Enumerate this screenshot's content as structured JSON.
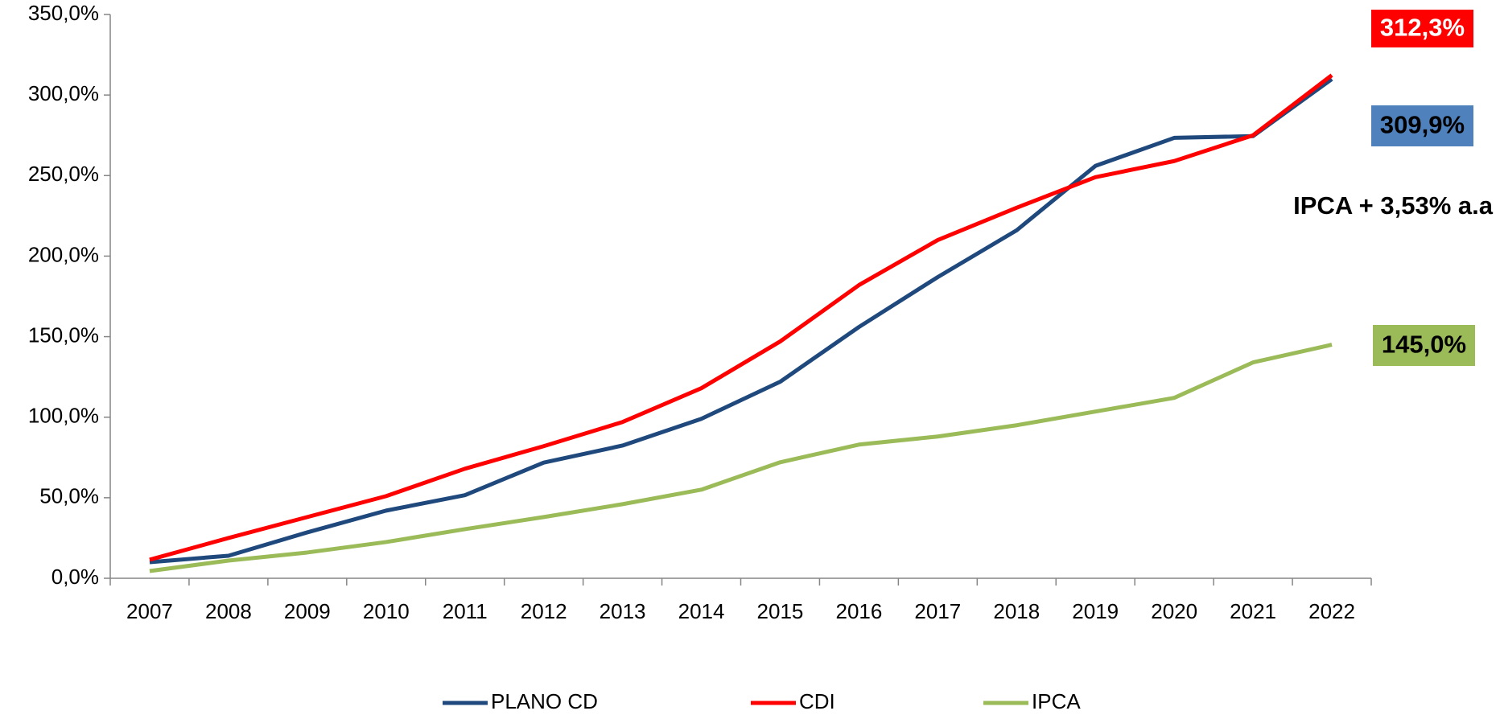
{
  "chart_data": {
    "type": "line",
    "categories": [
      "2007",
      "2008",
      "2009",
      "2010",
      "2011",
      "2012",
      "2013",
      "2014",
      "2015",
      "2016",
      "2017",
      "2018",
      "2019",
      "2020",
      "2021",
      "2022"
    ],
    "series": [
      {
        "name": "PLANO CD",
        "color": "#1f497d",
        "values": [
          10,
          14,
          28.5,
          42,
          51.6,
          71.8,
          82.4,
          99,
          122,
          156,
          187,
          216,
          256,
          273.4,
          274.5,
          309.9
        ]
      },
      {
        "name": "CDI",
        "color": "#ff0000",
        "values": [
          11.5,
          25,
          38,
          51,
          68,
          82,
          97,
          118,
          147,
          182,
          210,
          230,
          249,
          259,
          275,
          312.3
        ]
      },
      {
        "name": "IPCA",
        "color": "#9bbb59",
        "values": [
          4.5,
          11,
          16,
          22.5,
          30.5,
          38,
          46,
          55,
          72,
          83,
          88,
          95,
          103.5,
          112,
          134,
          145
        ]
      }
    ],
    "ylim": [
      0,
      350
    ],
    "yticks": [
      {
        "value": 0,
        "label": "0,0%"
      },
      {
        "value": 50,
        "label": "50,0%"
      },
      {
        "value": 100,
        "label": "100,0%"
      },
      {
        "value": 150,
        "label": "150,0%"
      },
      {
        "value": 200,
        "label": "200,0%"
      },
      {
        "value": 250,
        "label": "250,0%"
      },
      {
        "value": 300,
        "label": "300,0%"
      },
      {
        "value": 350,
        "label": "350,0%"
      }
    ],
    "grid": false,
    "legend": "bottom",
    "annotations": [
      {
        "text": "312,3%",
        "color": "#ff0000"
      },
      {
        "text": "309,9%",
        "color": "#4f81bd"
      },
      {
        "text": "IPCA + 3,53% a.a"
      },
      {
        "text": "145,0%",
        "color": "#9bbb59"
      }
    ]
  }
}
